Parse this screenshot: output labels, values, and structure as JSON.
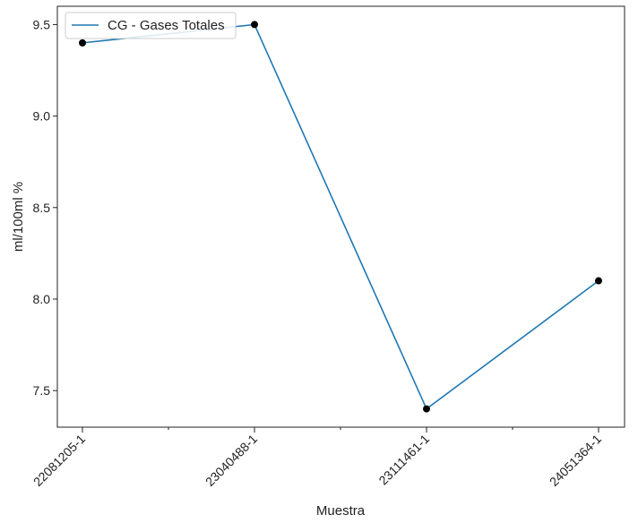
{
  "chart_data": {
    "type": "line",
    "categories": [
      "22081205-1",
      "23040488-1",
      "23111461-1",
      "24051364-1"
    ],
    "series": [
      {
        "name": "CG - Gases Totales",
        "values": [
          9.4,
          9.5,
          7.4,
          8.1
        ],
        "color": "#1f77b4",
        "marker_color": "#000000"
      }
    ],
    "xlabel": "Muestra",
    "ylabel": "ml/100ml %",
    "ylim": [
      7.3,
      9.6
    ],
    "yticks": [
      7.5,
      8.0,
      8.5,
      9.0,
      9.5
    ],
    "ytick_labels": [
      "7.5",
      "8.0",
      "8.5",
      "9.0",
      "9.5"
    ],
    "x_minor_ticks": true,
    "grid": false,
    "legend_position": "upper-left"
  }
}
